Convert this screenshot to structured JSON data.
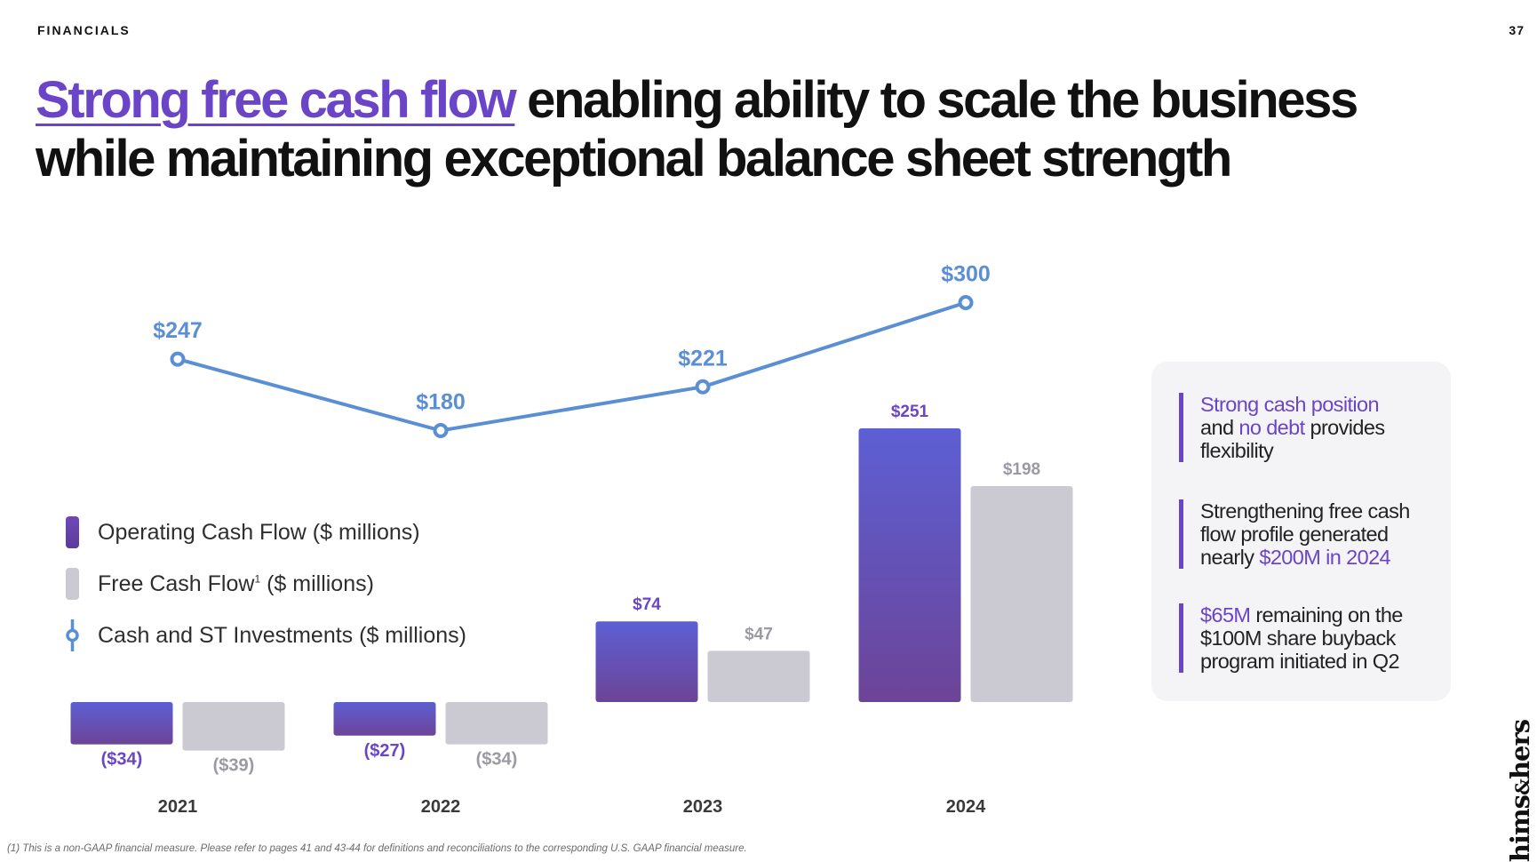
{
  "header": {
    "section": "FINANCIALS",
    "page_number": "37"
  },
  "headline": {
    "highlight": "Strong free cash flow",
    "rest_line1": " enabling ability to scale the business",
    "line2": "while maintaining exceptional balance sheet strength"
  },
  "colors": {
    "operating_cash_flow": "#6a45c8",
    "free_cash_flow": "#cbcad2",
    "cash_line": "#5b8fd4",
    "accent": "#6a45c8"
  },
  "legend": {
    "items": [
      {
        "name": "Operating Cash Flow ($ millions)",
        "marker": "bar-swatch",
        "label": "Operating Cash Flow ($ millions)"
      },
      {
        "name": "Free Cash Flow ($ millions)",
        "marker": "bar-swatch",
        "label_pre": "Free Cash Flow",
        "sup": "1",
        "label_post": " ($ millions)"
      },
      {
        "name": "Cash and ST Investments ($ millions)",
        "marker": "circle-line-icon",
        "label": "Cash and ST Investments ($ millions)"
      }
    ]
  },
  "chart_data": {
    "type": "bar+line",
    "categories": [
      "2021",
      "2022",
      "2023",
      "2024"
    ],
    "series": [
      {
        "name": "Operating Cash Flow ($ millions)",
        "type": "bar",
        "values": [
          -34,
          -27,
          74,
          251
        ],
        "labels": [
          "($34)",
          "($27)",
          "$74",
          "$251"
        ]
      },
      {
        "name": "Free Cash Flow ($ millions)",
        "type": "bar",
        "values": [
          -39,
          -34,
          47,
          198
        ],
        "labels": [
          "($39)",
          "($34)",
          "$47",
          "$198"
        ]
      },
      {
        "name": "Cash and ST Investments ($ millions)",
        "type": "line",
        "values": [
          247,
          180,
          221,
          300
        ],
        "labels": [
          "$247",
          "$180",
          "$221",
          "$300"
        ]
      }
    ]
  },
  "callout": {
    "points": [
      {
        "segments": [
          {
            "text": "Strong cash position",
            "accent": true,
            "br": true
          },
          {
            "text": "and "
          },
          {
            "text": "no debt",
            "accent": true
          },
          {
            "text": " provides",
            "br": true
          },
          {
            "text": "flexibility"
          }
        ]
      },
      {
        "segments": [
          {
            "text": "Strengthening free cash",
            "br": true
          },
          {
            "text": "flow profile generated",
            "br": true
          },
          {
            "text": "nearly "
          },
          {
            "text": "$200M in 2024",
            "accent": true
          }
        ]
      },
      {
        "segments": [
          {
            "text": "$65M",
            "accent": true
          },
          {
            "text": " remaining on the",
            "br": true
          },
          {
            "text": "$100M share buyback",
            "br": true
          },
          {
            "text": "program initiated in Q2"
          }
        ]
      }
    ]
  },
  "brand": {
    "logo_main": "hims",
    "logo_amp": "&",
    "logo_end": "hers"
  },
  "footnote": "(1) This is a non-GAAP financial measure. Please refer to pages 41 and 43-44 for definitions and reconciliations to the corresponding U.S. GAAP financial measure."
}
